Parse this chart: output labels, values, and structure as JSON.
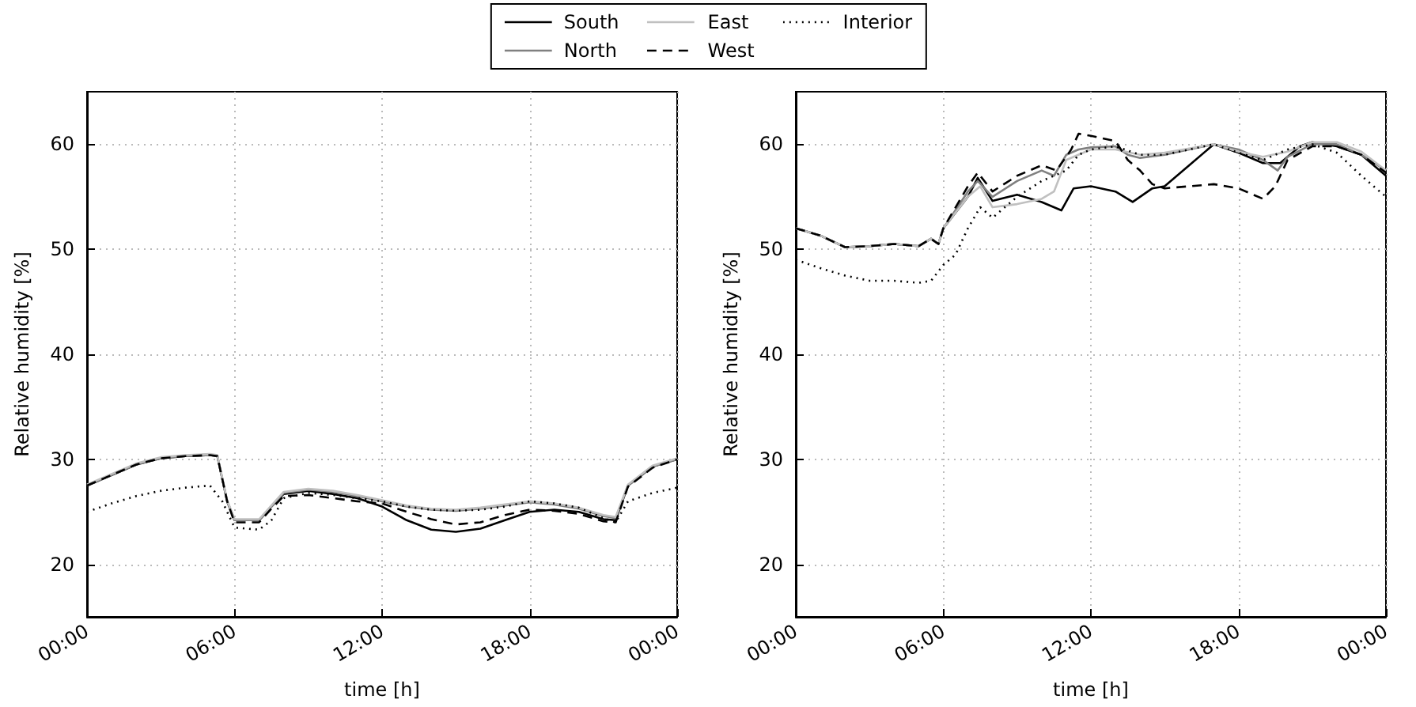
{
  "chart_data": [
    {
      "type": "line",
      "xlabel": "time [h]",
      "ylabel": "Relative humidity [%]",
      "xlim": [
        0,
        24
      ],
      "ylim": [
        15,
        65
      ],
      "xticks": [
        {
          "value": 0,
          "label": "00:00"
        },
        {
          "value": 6,
          "label": "06:00"
        },
        {
          "value": 12,
          "label": "12:00"
        },
        {
          "value": 18,
          "label": "18:00"
        },
        {
          "value": 24,
          "label": "00:00"
        }
      ],
      "yticks": [
        20,
        30,
        40,
        50,
        60
      ],
      "grid": true,
      "legend": "top",
      "marker": "none",
      "series": [
        {
          "name": "South",
          "color": "#000000",
          "line_style": "solid",
          "x": [
            0,
            1,
            2,
            3,
            4,
            5,
            5.3,
            5.7,
            6,
            7,
            7.5,
            8,
            9,
            10,
            11,
            12,
            13,
            14,
            15,
            16,
            17,
            18,
            19,
            20,
            21,
            21.5,
            22,
            23,
            24
          ],
          "values": [
            27.5,
            28.5,
            29.5,
            30.1,
            30.3,
            30.4,
            30.3,
            26,
            24.2,
            24.2,
            25.5,
            26.7,
            27,
            26.7,
            26.3,
            25.5,
            24.2,
            23.3,
            23.1,
            23.4,
            24.2,
            25,
            25.2,
            25,
            24.3,
            24.2,
            27.5,
            29.3,
            30
          ]
        },
        {
          "name": "North",
          "color": "#808080",
          "line_style": "solid",
          "x": [
            0,
            1,
            2,
            3,
            4,
            5,
            5.3,
            5.7,
            6,
            7,
            7.5,
            8,
            9,
            10,
            11,
            12,
            13,
            14,
            15,
            16,
            17,
            18,
            19,
            20,
            21,
            21.5,
            22,
            23,
            24
          ],
          "values": [
            27.5,
            28.5,
            29.5,
            30.1,
            30.3,
            30.4,
            30.3,
            26,
            24.2,
            24.2,
            25.5,
            26.8,
            27.1,
            26.9,
            26.5,
            26,
            25.5,
            25.2,
            25.1,
            25.3,
            25.6,
            25.9,
            25.7,
            25.3,
            24.6,
            24.4,
            27.5,
            29.3,
            30
          ]
        },
        {
          "name": "East",
          "color": "#c0c0c0",
          "line_style": "solid",
          "x": [
            0,
            1,
            2,
            3,
            4,
            5,
            5.3,
            5.7,
            6,
            7,
            7.5,
            8,
            9,
            10,
            11,
            12,
            13,
            14,
            15,
            16,
            17,
            18,
            19,
            20,
            21,
            21.5,
            22,
            23,
            24
          ],
          "values": [
            27.6,
            28.6,
            29.6,
            30.2,
            30.4,
            30.5,
            30.4,
            26.1,
            24.3,
            24.3,
            25.6,
            26.9,
            27.2,
            27,
            26.6,
            26.1,
            25.6,
            25.3,
            25.2,
            25.4,
            25.7,
            26,
            25.8,
            25.4,
            24.7,
            24.5,
            27.6,
            29.4,
            30.1
          ]
        },
        {
          "name": "West",
          "color": "#000000",
          "line_style": "dashed",
          "x": [
            0,
            1,
            2,
            3,
            4,
            5,
            5.3,
            5.7,
            6,
            7,
            7.5,
            8,
            9,
            10,
            11,
            12,
            13,
            14,
            15,
            16,
            17,
            18,
            19,
            20,
            21,
            21.5,
            22,
            23,
            24
          ],
          "values": [
            27.5,
            28.5,
            29.5,
            30.1,
            30.3,
            30.4,
            30.3,
            26,
            24,
            24,
            25.3,
            26.5,
            26.6,
            26.3,
            26,
            25.8,
            25,
            24.3,
            23.8,
            24,
            24.7,
            25.2,
            25.1,
            24.8,
            24.1,
            24,
            27.4,
            29.2,
            30
          ]
        },
        {
          "name": "Interior",
          "color": "#000000",
          "line_style": "dotted",
          "x": [
            0,
            1,
            2,
            3,
            4,
            5,
            5.5,
            6,
            7,
            7.5,
            8,
            9,
            10,
            11,
            12,
            13,
            14,
            15,
            16,
            17,
            18,
            19,
            20,
            21,
            21.5,
            22,
            23,
            24
          ],
          "values": [
            25,
            25.8,
            26.5,
            27,
            27.3,
            27.5,
            26,
            23.5,
            23.3,
            24.2,
            26.3,
            26.8,
            26.6,
            26.3,
            26,
            25.5,
            25.2,
            25.1,
            25.2,
            25.5,
            26,
            25.8,
            25.4,
            24.4,
            24,
            26,
            26.8,
            27.3
          ]
        }
      ]
    },
    {
      "type": "line",
      "xlabel": "time [h]",
      "ylabel": "Relative humidity [%]",
      "xlim": [
        0,
        24
      ],
      "ylim": [
        15,
        65
      ],
      "xticks": [
        {
          "value": 0,
          "label": "00:00"
        },
        {
          "value": 6,
          "label": "06:00"
        },
        {
          "value": 12,
          "label": "12:00"
        },
        {
          "value": 18,
          "label": "18:00"
        },
        {
          "value": 24,
          "label": "00:00"
        }
      ],
      "yticks": [
        20,
        30,
        40,
        50,
        60
      ],
      "grid": true,
      "marker": "none",
      "series": [
        {
          "color": "#000000",
          "line_style": "solid",
          "x": [
            0,
            1,
            2,
            3,
            4,
            5,
            5.5,
            5.8,
            6,
            7,
            7.4,
            8,
            9,
            10,
            10.8,
            11.3,
            12,
            13,
            13.7,
            14.5,
            15,
            16,
            17,
            18,
            19,
            19.7,
            20.5,
            21,
            22,
            23,
            24
          ],
          "values": [
            52,
            51.3,
            50.2,
            50.3,
            50.5,
            50.3,
            51,
            50.5,
            52,
            55,
            56.8,
            54.6,
            55.2,
            54.5,
            53.7,
            55.8,
            56,
            55.5,
            54.5,
            55.8,
            56,
            58,
            60,
            59.2,
            58.2,
            58.2,
            59.8,
            60.2,
            59.8,
            59,
            57
          ]
        },
        {
          "color": "#808080",
          "line_style": "solid",
          "x": [
            0,
            1,
            2,
            3,
            4,
            5,
            5.5,
            5.8,
            6,
            7,
            7.4,
            8,
            9,
            10,
            10.5,
            11,
            11.5,
            12,
            13,
            13.5,
            14,
            15,
            16,
            17,
            18,
            19,
            19.6,
            20,
            21,
            22,
            23,
            24
          ],
          "values": [
            52,
            51.3,
            50.2,
            50.3,
            50.5,
            50.3,
            51,
            50.5,
            52,
            55.5,
            56.5,
            55,
            56.5,
            57.5,
            57,
            59,
            59.5,
            59.7,
            59.8,
            59,
            58.7,
            59,
            59.5,
            60,
            59.5,
            58.5,
            57.5,
            58.8,
            60,
            60,
            59,
            57.5
          ]
        },
        {
          "color": "#c0c0c0",
          "line_style": "solid",
          "x": [
            0,
            1,
            2,
            3,
            4,
            5,
            5.5,
            5.8,
            6,
            7,
            7.5,
            8,
            9,
            10,
            10.5,
            11,
            12,
            13,
            14,
            15,
            16,
            17,
            18,
            19,
            20,
            21,
            22,
            23,
            24
          ],
          "values": [
            52,
            51.3,
            50.2,
            50.3,
            50.5,
            50.3,
            51,
            50.5,
            52,
            55,
            56,
            54,
            54.3,
            54.8,
            55.5,
            58.5,
            59.5,
            59.5,
            59,
            59.2,
            59.6,
            60,
            59.3,
            58.8,
            59.3,
            60.2,
            60.2,
            59.3,
            57.5
          ]
        },
        {
          "color": "#000000",
          "line_style": "dashed",
          "x": [
            0,
            1,
            2,
            3,
            4,
            5,
            5.5,
            5.8,
            6,
            7,
            7.4,
            8,
            9,
            10,
            10.6,
            11.2,
            11.5,
            12,
            13,
            13.5,
            14,
            14.5,
            15,
            16,
            17,
            18,
            19,
            19.5,
            20,
            21,
            22,
            23,
            24
          ],
          "values": [
            52,
            51.3,
            50.2,
            50.3,
            50.5,
            50.3,
            51,
            50.5,
            52,
            56,
            57.3,
            55.5,
            57,
            58,
            57.5,
            59.5,
            61,
            60.8,
            60.3,
            58.5,
            57.5,
            56.2,
            55.8,
            56,
            56.2,
            55.8,
            54.8,
            56,
            58.5,
            59.8,
            59.8,
            59,
            57.3
          ]
        },
        {
          "color": "#000000",
          "line_style": "dotted",
          "x": [
            0,
            1,
            2,
            3,
            4,
            5,
            5.5,
            6,
            6.5,
            7,
            7.5,
            8,
            8.5,
            9,
            10,
            10.5,
            11,
            11.5,
            12,
            13,
            14,
            15,
            16,
            17,
            18,
            19,
            20,
            21,
            22,
            23,
            24
          ],
          "values": [
            49,
            48.2,
            47.5,
            47,
            47,
            46.8,
            47,
            48.5,
            49.5,
            52,
            54,
            53,
            54,
            55,
            56.5,
            57,
            57.5,
            59,
            59.5,
            59.8,
            59,
            59,
            59.5,
            60,
            59.2,
            58.5,
            59.5,
            60,
            59.2,
            57,
            55
          ]
        }
      ]
    }
  ]
}
